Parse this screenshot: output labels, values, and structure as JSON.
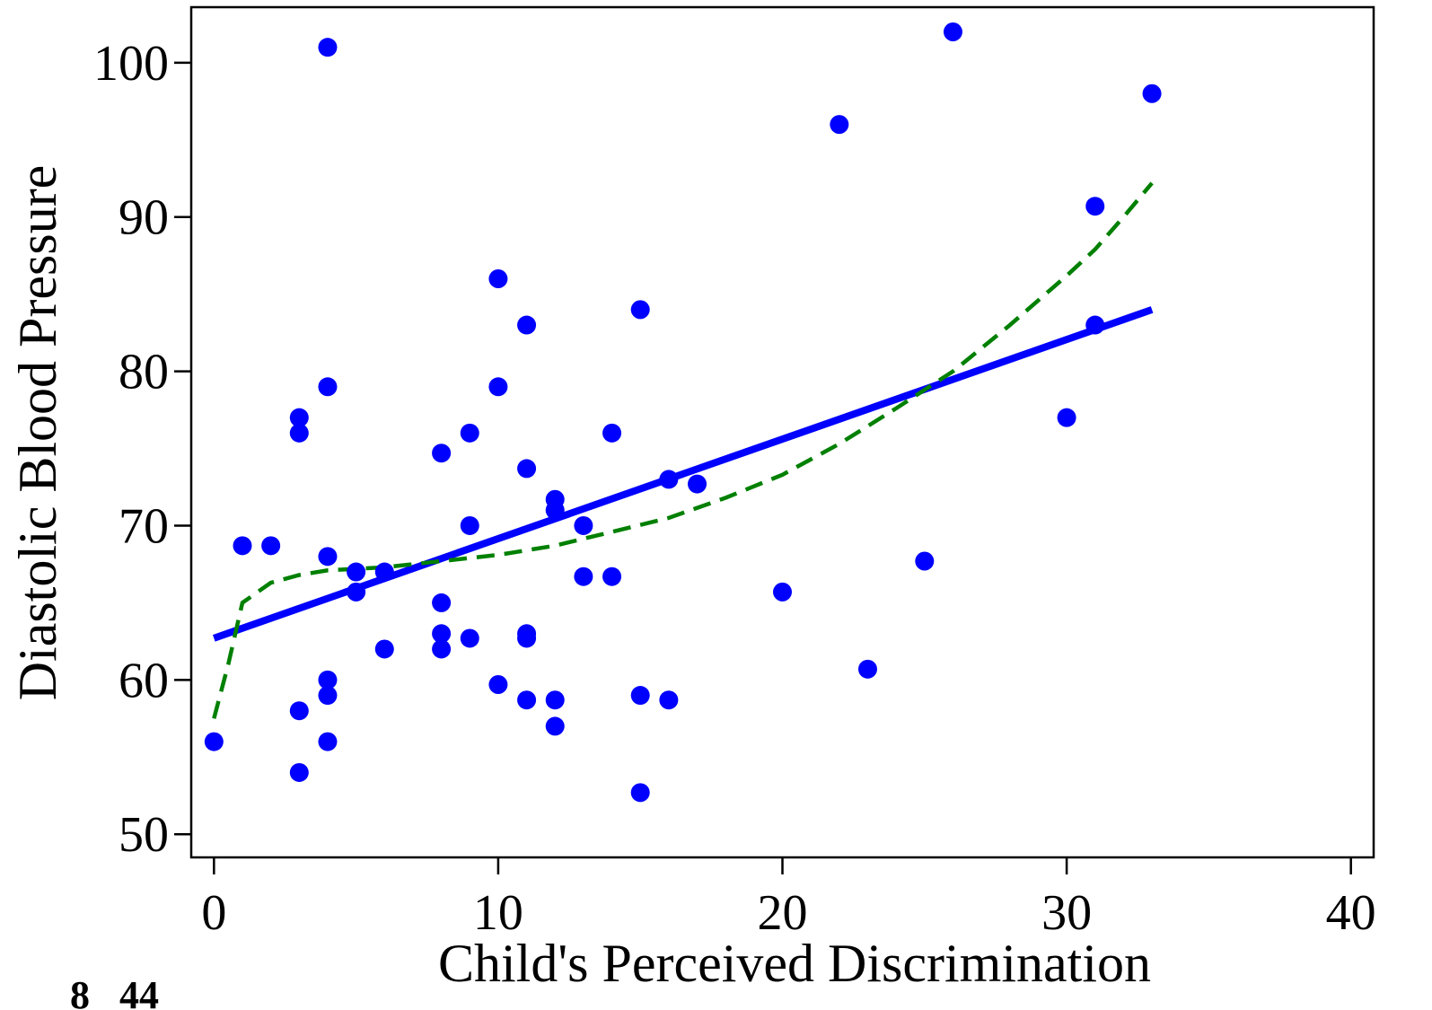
{
  "chart_data": {
    "type": "scatter",
    "xlabel": "Child's Perceived Discrimination",
    "ylabel": "Diastolic Blood Pressure",
    "xlim": [
      -0.8,
      40.8
    ],
    "ylim": [
      48.5,
      103.6
    ],
    "x_ticks": [
      0,
      10,
      20,
      30,
      40
    ],
    "y_ticks": [
      50,
      60,
      70,
      80,
      90,
      100
    ],
    "x_tick_labels": [
      "0",
      "10",
      "20",
      "30",
      "40"
    ],
    "y_tick_labels": [
      "50",
      "60",
      "70",
      "80",
      "90",
      "100"
    ],
    "grid": false,
    "legend": "none",
    "colors": {
      "points": "#0000ff",
      "linear_fit": "#0000ff",
      "smooth_fit": "#008000"
    },
    "series": [
      {
        "kind": "scatter",
        "points": [
          [
            0,
            56
          ],
          [
            1,
            68.7
          ],
          [
            2,
            68.7
          ],
          [
            3,
            77
          ],
          [
            3,
            76
          ],
          [
            3,
            58
          ],
          [
            3,
            54
          ],
          [
            4,
            101
          ],
          [
            4,
            79
          ],
          [
            4,
            68
          ],
          [
            4,
            60
          ],
          [
            4,
            59
          ],
          [
            4,
            56
          ],
          [
            5,
            67
          ],
          [
            5,
            65.7
          ],
          [
            6,
            67
          ],
          [
            6,
            62
          ],
          [
            8,
            74.7
          ],
          [
            8,
            65
          ],
          [
            8,
            63
          ],
          [
            8,
            62
          ],
          [
            9,
            76
          ],
          [
            9,
            70
          ],
          [
            9,
            62.7
          ],
          [
            10,
            86
          ],
          [
            10,
            79
          ],
          [
            10,
            59.7
          ],
          [
            11,
            83
          ],
          [
            11,
            73.7
          ],
          [
            11,
            63
          ],
          [
            11,
            62.7
          ],
          [
            11,
            58.7
          ],
          [
            12,
            71.7
          ],
          [
            12,
            71
          ],
          [
            12,
            58.7
          ],
          [
            12,
            57
          ],
          [
            13,
            70
          ],
          [
            13,
            66.7
          ],
          [
            14,
            76
          ],
          [
            14,
            66.7
          ],
          [
            15,
            84
          ],
          [
            15,
            59
          ],
          [
            15,
            52.7
          ],
          [
            16,
            73
          ],
          [
            16,
            58.7
          ],
          [
            17,
            72.7
          ],
          [
            20,
            65.7
          ],
          [
            22,
            96
          ],
          [
            23,
            60.7
          ],
          [
            25,
            67.7
          ],
          [
            26,
            102
          ],
          [
            30,
            77
          ],
          [
            31,
            90.7
          ],
          [
            31,
            83
          ],
          [
            33,
            98
          ]
        ]
      },
      {
        "kind": "line",
        "style": "solid",
        "points": [
          [
            0,
            62.7
          ],
          [
            33,
            84
          ]
        ]
      },
      {
        "kind": "line",
        "style": "dashed",
        "points": [
          [
            0,
            57.5
          ],
          [
            0.5,
            61
          ],
          [
            1,
            65
          ],
          [
            2,
            66.3
          ],
          [
            3,
            66.8
          ],
          [
            4,
            67.1
          ],
          [
            6,
            67.3
          ],
          [
            8,
            67.7
          ],
          [
            10,
            68.1
          ],
          [
            12,
            68.7
          ],
          [
            14,
            69.6
          ],
          [
            16,
            70.5
          ],
          [
            18,
            71.8
          ],
          [
            20,
            73.3
          ],
          [
            22,
            75.3
          ],
          [
            24,
            77.6
          ],
          [
            26,
            80
          ],
          [
            28,
            83
          ],
          [
            30,
            86.2
          ],
          [
            31,
            87.9
          ],
          [
            32,
            90
          ],
          [
            33,
            92.2
          ]
        ]
      }
    ]
  },
  "stray_text": "8   44"
}
